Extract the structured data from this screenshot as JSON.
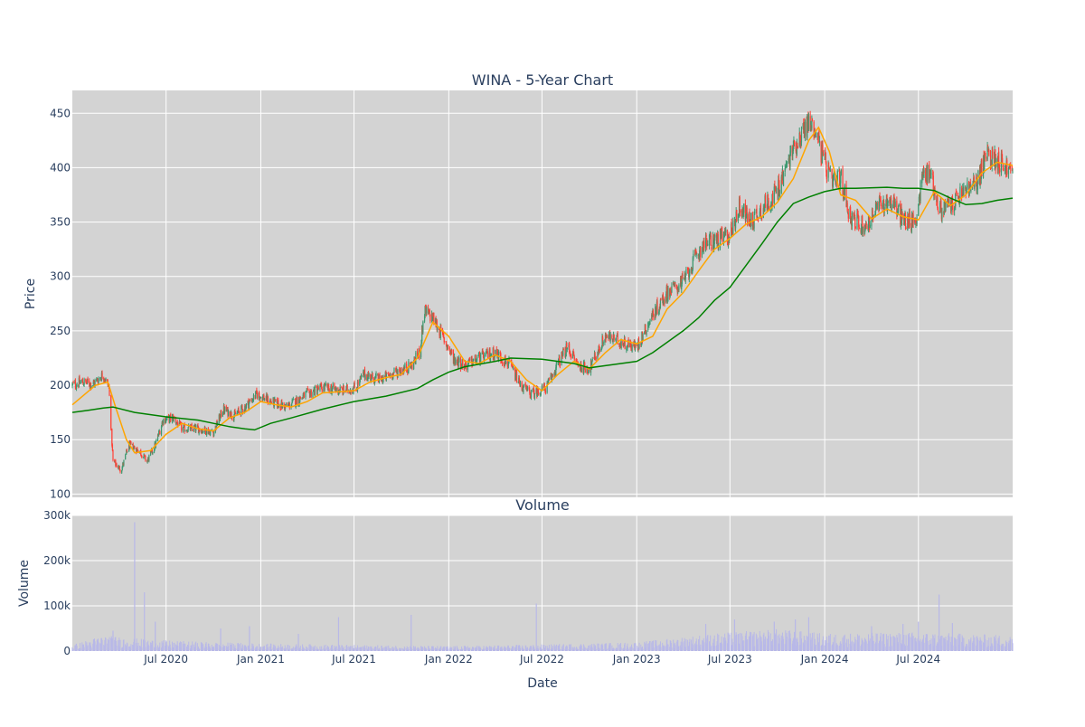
{
  "chart_data": [
    {
      "type": "candlestick",
      "title": "WINA - 5-Year Chart",
      "ylabel": "Price",
      "ylim": [
        97,
        471
      ],
      "yticks": [
        100,
        150,
        200,
        250,
        300,
        350,
        400,
        450
      ],
      "x_range": [
        "2020-01-01",
        "2024-12-31"
      ],
      "xticks": [
        {
          "date": "2020-07-01",
          "label": "Jul 2020"
        },
        {
          "date": "2021-01-01",
          "label": "Jan 2021"
        },
        {
          "date": "2021-07-01",
          "label": "Jul 2021"
        },
        {
          "date": "2022-01-01",
          "label": "Jan 2022"
        },
        {
          "date": "2022-07-01",
          "label": "Jul 2022"
        },
        {
          "date": "2023-01-01",
          "label": "Jan 2023"
        },
        {
          "date": "2023-07-01",
          "label": "Jul 2023"
        },
        {
          "date": "2024-01-01",
          "label": "Jan 2024"
        },
        {
          "date": "2024-07-01",
          "label": "Jul 2024"
        }
      ],
      "grid": true,
      "colors": {
        "increasing": "#3d9970",
        "decreasing": "#ff4136",
        "ma_short": "#ffa500",
        "ma_long": "#008000",
        "background": "#d3d3d3"
      },
      "price_path": [
        [
          "2020-01-01",
          200
        ],
        [
          "2020-01-20",
          203
        ],
        [
          "2020-02-10",
          201
        ],
        [
          "2020-03-01",
          210
        ],
        [
          "2020-03-12",
          198
        ],
        [
          "2020-03-20",
          130
        ],
        [
          "2020-04-05",
          122
        ],
        [
          "2020-04-20",
          145
        ],
        [
          "2020-05-10",
          140
        ],
        [
          "2020-05-25",
          130
        ],
        [
          "2020-06-10",
          145
        ],
        [
          "2020-06-25",
          168
        ],
        [
          "2020-07-15",
          170
        ],
        [
          "2020-08-01",
          160
        ],
        [
          "2020-09-01",
          160
        ],
        [
          "2020-10-01",
          157
        ],
        [
          "2020-10-20",
          178
        ],
        [
          "2020-11-10",
          172
        ],
        [
          "2020-12-01",
          180
        ],
        [
          "2020-12-25",
          192
        ],
        [
          "2021-01-20",
          185
        ],
        [
          "2021-02-20",
          180
        ],
        [
          "2021-04-01",
          192
        ],
        [
          "2021-05-01",
          198
        ],
        [
          "2021-06-10",
          195
        ],
        [
          "2021-07-05",
          198
        ],
        [
          "2021-07-20",
          210
        ],
        [
          "2021-08-20",
          205
        ],
        [
          "2021-09-20",
          212
        ],
        [
          "2021-10-20",
          218
        ],
        [
          "2021-11-05",
          230
        ],
        [
          "2021-11-15",
          268
        ],
        [
          "2021-12-01",
          262
        ],
        [
          "2021-12-20",
          245
        ],
        [
          "2022-01-10",
          225
        ],
        [
          "2022-02-01",
          218
        ],
        [
          "2022-03-01",
          225
        ],
        [
          "2022-04-01",
          230
        ],
        [
          "2022-05-01",
          218
        ],
        [
          "2022-05-20",
          200
        ],
        [
          "2022-06-10",
          192
        ],
        [
          "2022-07-10",
          198
        ],
        [
          "2022-08-01",
          220
        ],
        [
          "2022-08-20",
          235
        ],
        [
          "2022-09-10",
          218
        ],
        [
          "2022-10-01",
          215
        ],
        [
          "2022-11-01",
          245
        ],
        [
          "2022-12-01",
          240
        ],
        [
          "2023-01-01",
          235
        ],
        [
          "2023-02-01",
          265
        ],
        [
          "2023-03-01",
          285
        ],
        [
          "2023-04-01",
          295
        ],
        [
          "2023-05-10",
          330
        ],
        [
          "2023-06-01",
          333
        ],
        [
          "2023-07-01",
          338
        ],
        [
          "2023-07-20",
          365
        ],
        [
          "2023-08-10",
          350
        ],
        [
          "2023-09-01",
          362
        ],
        [
          "2023-10-01",
          378
        ],
        [
          "2023-11-01",
          418
        ],
        [
          "2023-12-01",
          442
        ],
        [
          "2023-12-15",
          435
        ],
        [
          "2023-12-25",
          415
        ],
        [
          "2024-01-15",
          385
        ],
        [
          "2024-02-01",
          390
        ],
        [
          "2024-02-20",
          355
        ],
        [
          "2024-03-20",
          345
        ],
        [
          "2024-04-15",
          365
        ],
        [
          "2024-05-10",
          370
        ],
        [
          "2024-06-01",
          352
        ],
        [
          "2024-06-25",
          350
        ],
        [
          "2024-07-10",
          395
        ],
        [
          "2024-07-25",
          395
        ],
        [
          "2024-08-10",
          360
        ],
        [
          "2024-09-10",
          368
        ],
        [
          "2024-10-01",
          380
        ],
        [
          "2024-10-20",
          383
        ],
        [
          "2024-11-10",
          412
        ],
        [
          "2024-12-01",
          408
        ],
        [
          "2024-12-31",
          395
        ]
      ],
      "series": [
        {
          "kind": "ma_short",
          "points": [
            [
              "2020-01-01",
              182
            ],
            [
              "2020-02-15",
              200
            ],
            [
              "2020-03-10",
              203
            ],
            [
              "2020-03-25",
              180
            ],
            [
              "2020-04-15",
              150
            ],
            [
              "2020-05-01",
              138
            ],
            [
              "2020-06-01",
              140
            ],
            [
              "2020-07-01",
              155
            ],
            [
              "2020-08-01",
              165
            ],
            [
              "2020-09-01",
              160
            ],
            [
              "2020-10-01",
              158
            ],
            [
              "2020-11-01",
              170
            ],
            [
              "2020-12-01",
              175
            ],
            [
              "2021-01-01",
              185
            ],
            [
              "2021-02-01",
              182
            ],
            [
              "2021-03-01",
              180
            ],
            [
              "2021-04-01",
              185
            ],
            [
              "2021-05-01",
              193
            ],
            [
              "2021-07-01",
              195
            ],
            [
              "2021-08-01",
              203
            ],
            [
              "2021-09-01",
              207
            ],
            [
              "2021-10-01",
              210
            ],
            [
              "2021-11-01",
              225
            ],
            [
              "2021-12-01",
              258
            ],
            [
              "2022-01-01",
              245
            ],
            [
              "2022-02-01",
              222
            ],
            [
              "2022-03-01",
              220
            ],
            [
              "2022-04-01",
              228
            ],
            [
              "2022-05-01",
              222
            ],
            [
              "2022-06-01",
              205
            ],
            [
              "2022-07-01",
              195
            ],
            [
              "2022-08-01",
              210
            ],
            [
              "2022-09-01",
              222
            ],
            [
              "2022-10-01",
              215
            ],
            [
              "2022-11-01",
              230
            ],
            [
              "2022-12-01",
              242
            ],
            [
              "2023-01-01",
              238
            ],
            [
              "2023-02-01",
              245
            ],
            [
              "2023-03-01",
              270
            ],
            [
              "2023-04-01",
              285
            ],
            [
              "2023-05-01",
              305
            ],
            [
              "2023-06-01",
              325
            ],
            [
              "2023-07-01",
              335
            ],
            [
              "2023-08-01",
              348
            ],
            [
              "2023-09-01",
              355
            ],
            [
              "2023-10-01",
              368
            ],
            [
              "2023-11-01",
              390
            ],
            [
              "2023-12-01",
              425
            ],
            [
              "2023-12-20",
              437
            ],
            [
              "2024-01-10",
              415
            ],
            [
              "2024-02-01",
              375
            ],
            [
              "2024-03-01",
              370
            ],
            [
              "2024-04-01",
              353
            ],
            [
              "2024-05-01",
              362
            ],
            [
              "2024-06-01",
              355
            ],
            [
              "2024-07-01",
              352
            ],
            [
              "2024-08-01",
              378
            ],
            [
              "2024-09-01",
              365
            ],
            [
              "2024-10-01",
              375
            ],
            [
              "2024-11-01",
              395
            ],
            [
              "2024-12-01",
              405
            ],
            [
              "2024-12-31",
              402
            ]
          ]
        },
        {
          "kind": "ma_long",
          "points": [
            [
              "2020-01-01",
              175
            ],
            [
              "2020-02-01",
              177
            ],
            [
              "2020-03-01",
              179
            ],
            [
              "2020-03-20",
              180
            ],
            [
              "2020-05-01",
              175
            ],
            [
              "2020-07-01",
              171
            ],
            [
              "2020-09-01",
              168
            ],
            [
              "2020-10-01",
              165
            ],
            [
              "2020-11-01",
              162
            ],
            [
              "2020-12-01",
              160
            ],
            [
              "2020-12-20",
              159
            ],
            [
              "2021-01-20",
              165
            ],
            [
              "2021-03-01",
              170
            ],
            [
              "2021-05-01",
              178
            ],
            [
              "2021-07-01",
              185
            ],
            [
              "2021-09-01",
              190
            ],
            [
              "2021-11-01",
              197
            ],
            [
              "2021-12-01",
              205
            ],
            [
              "2022-01-01",
              212
            ],
            [
              "2022-02-01",
              217
            ],
            [
              "2022-04-01",
              222
            ],
            [
              "2022-05-01",
              225
            ],
            [
              "2022-07-01",
              224
            ],
            [
              "2022-09-01",
              220
            ],
            [
              "2022-10-01",
              216
            ],
            [
              "2022-11-01",
              218
            ],
            [
              "2023-01-01",
              222
            ],
            [
              "2023-02-01",
              230
            ],
            [
              "2023-04-01",
              250
            ],
            [
              "2023-05-01",
              262
            ],
            [
              "2023-06-01",
              278
            ],
            [
              "2023-07-01",
              290
            ],
            [
              "2023-08-01",
              310
            ],
            [
              "2023-09-01",
              330
            ],
            [
              "2023-10-01",
              350
            ],
            [
              "2023-11-01",
              367
            ],
            [
              "2023-12-01",
              373
            ],
            [
              "2024-01-01",
              378
            ],
            [
              "2024-02-01",
              381
            ],
            [
              "2024-03-01",
              381
            ],
            [
              "2024-05-01",
              382
            ],
            [
              "2024-06-01",
              381
            ],
            [
              "2024-07-01",
              381
            ],
            [
              "2024-08-01",
              379
            ],
            [
              "2024-09-01",
              372
            ],
            [
              "2024-10-01",
              366
            ],
            [
              "2024-11-01",
              367
            ],
            [
              "2024-12-01",
              370
            ],
            [
              "2024-12-31",
              372
            ]
          ]
        }
      ]
    },
    {
      "type": "bar",
      "title": "Volume",
      "xlabel": "Date",
      "ylabel": "Volume",
      "ylim": [
        0,
        300000
      ],
      "yticks": [
        {
          "v": 0,
          "label": "0"
        },
        {
          "v": 100000,
          "label": "100k"
        },
        {
          "v": 200000,
          "label": "200k"
        },
        {
          "v": 300000,
          "label": "300k"
        }
      ],
      "x_range": [
        "2020-01-01",
        "2024-12-31"
      ],
      "color": "#b8b8e8",
      "baseline_levels": [
        [
          "2020-01-01",
          10000
        ],
        [
          "2020-03-01",
          25000
        ],
        [
          "2020-06-01",
          18000
        ],
        [
          "2020-09-01",
          15000
        ],
        [
          "2021-01-01",
          12000
        ],
        [
          "2021-06-01",
          10000
        ],
        [
          "2022-01-01",
          8000
        ],
        [
          "2022-06-01",
          10000
        ],
        [
          "2023-01-01",
          14000
        ],
        [
          "2023-06-01",
          28000
        ],
        [
          "2023-10-01",
          35000
        ],
        [
          "2024-01-01",
          28000
        ],
        [
          "2024-07-01",
          30000
        ],
        [
          "2024-12-31",
          25000
        ]
      ],
      "spikes": [
        [
          "2020-05-01",
          285000
        ],
        [
          "2020-05-20",
          130000
        ],
        [
          "2020-06-10",
          65000
        ],
        [
          "2020-03-20",
          45000
        ],
        [
          "2020-10-15",
          50000
        ],
        [
          "2020-12-10",
          55000
        ],
        [
          "2021-03-15",
          38000
        ],
        [
          "2021-06-01",
          75000
        ],
        [
          "2021-10-20",
          80000
        ],
        [
          "2022-06-20",
          105000
        ],
        [
          "2023-05-15",
          60000
        ],
        [
          "2023-07-10",
          70000
        ],
        [
          "2023-09-25",
          65000
        ],
        [
          "2023-11-05",
          70000
        ],
        [
          "2023-12-01",
          75000
        ],
        [
          "2024-04-01",
          55000
        ],
        [
          "2024-06-01",
          60000
        ],
        [
          "2024-07-01",
          65000
        ],
        [
          "2024-08-10",
          125000
        ],
        [
          "2024-09-05",
          62000
        ]
      ]
    }
  ]
}
